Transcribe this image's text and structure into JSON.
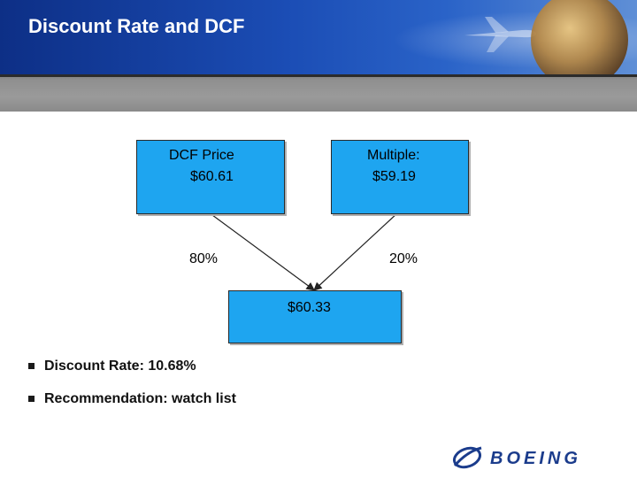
{
  "slide": {
    "title": "Discount Rate and DCF"
  },
  "diagram": {
    "dcf_box": {
      "line1": "DCF Price",
      "line2": "$60.61"
    },
    "multiple_box": {
      "line1": "Multiple:",
      "line2": "$59.19"
    },
    "left_weight": "80%",
    "right_weight": "20%",
    "result_box": {
      "value": "$60.33"
    }
  },
  "bullets": [
    "Discount Rate: 10.68%",
    "Recommendation: watch list"
  ],
  "logo": {
    "text": "BOEING"
  },
  "colors": {
    "header_blue": "#1b4db5",
    "box_blue": "#1ea5f0",
    "logo_blue": "#1b3c8c"
  },
  "icons": [
    "globe-icon",
    "airplane-icon",
    "bullet-square-icon",
    "boeing-logo-icon"
  ]
}
